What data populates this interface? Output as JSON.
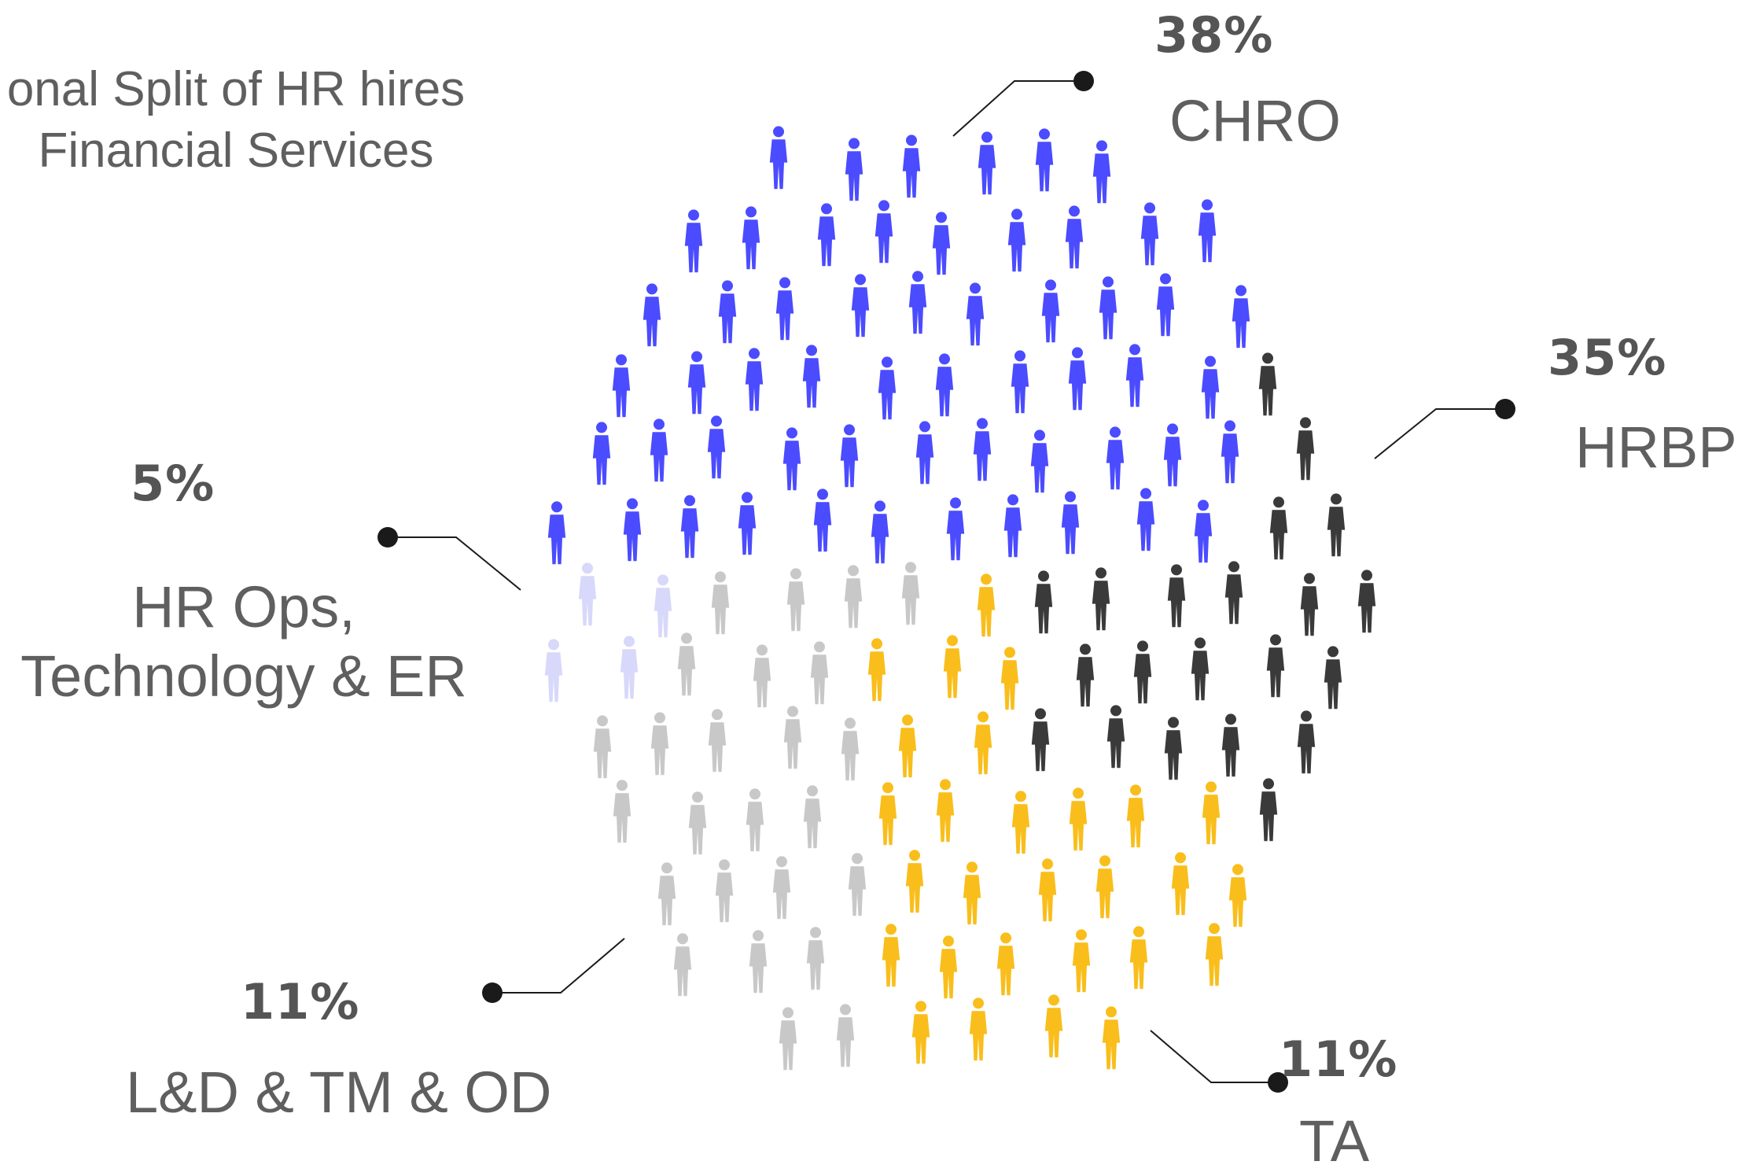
{
  "subtitle_lines": [
    "onal Split of HR hires",
    "Financial Services"
  ],
  "chart_data": {
    "type": "pictogram",
    "title": "",
    "categories": [
      "CHRO",
      "HRBP",
      "TA",
      "L&D & TM & OD",
      "HR Ops, Technology & ER"
    ],
    "values": [
      38,
      35,
      11,
      11,
      5
    ],
    "value_labels": [
      "38%",
      "35%",
      "11%",
      "11%",
      "5%"
    ],
    "label_lines": {
      "hrops": [
        "HR Ops,",
        "Technology & ER"
      ]
    },
    "colors": [
      "#4b4bff",
      "#3a3a3a",
      "#f9be1c",
      "#c8c8c8",
      "#d8d8fa"
    ],
    "legend": "callouts"
  }
}
